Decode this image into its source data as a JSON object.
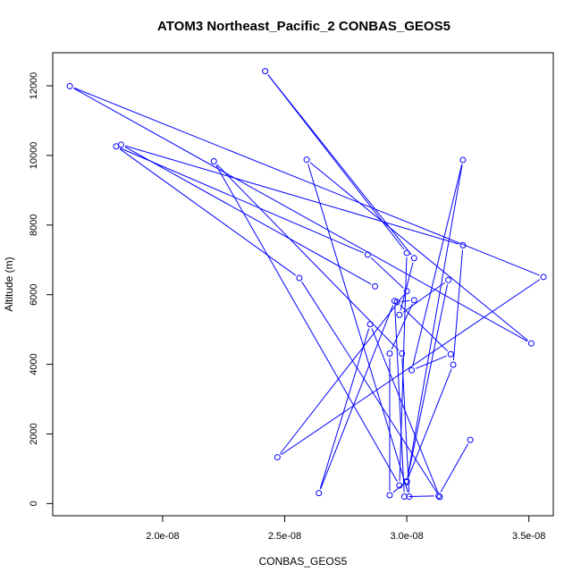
{
  "chart_data": {
    "type": "line",
    "title": "ATOM3 Northeast_Pacific_2 CONBAS_GEOS5",
    "xlabel": "CONBAS_GEOS5",
    "ylabel": "Altitude (m)",
    "xlim": [
      1.55e-08,
      3.6e-08
    ],
    "ylim": [
      -350,
      12950
    ],
    "x_ticks": [
      2e-08,
      2.5e-08,
      3e-08,
      3.5e-08
    ],
    "x_tick_labels": [
      "2.0e-08",
      "2.5e-08",
      "3.0e-08",
      "3.5e-08"
    ],
    "y_ticks": [
      0,
      2000,
      4000,
      6000,
      8000,
      10000,
      12000
    ],
    "y_tick_labels": [
      "0",
      "2000",
      "4000",
      "6000",
      "8000",
      "10000",
      "12000"
    ],
    "grid": false,
    "series": [
      {
        "color": "#0000ff",
        "marker": "open-circle",
        "x": [
          3.26e-08,
          3.13e-08,
          2.99e-08,
          2.95e-08,
          2.64e-08,
          2.85e-08,
          3.135e-08,
          2.56e-08,
          1.81e-08,
          2.84e-08,
          3e-08,
          2.47e-08,
          3.56e-08,
          1.62e-08,
          3.51e-08,
          2.59e-08,
          3.01e-08,
          2.98e-08,
          2.21e-08,
          2.97e-08,
          3e-08,
          2.42e-08,
          3.03e-08,
          2.97e-08,
          3.17e-08,
          3e-08,
          3.23e-08,
          3.02e-08,
          3.18e-08,
          2.96e-08,
          3.03e-08,
          2.93e-08,
          2.93e-08,
          3e-08,
          3.19e-08,
          3.23e-08,
          1.83e-08,
          2.87e-08
        ],
        "y": [
          1830,
          220,
          200,
          5820,
          300,
          5150,
          190,
          6480,
          10260,
          7150,
          6100,
          1330,
          6510,
          11990,
          4600,
          9880,
          200,
          4310,
          9830,
          520,
          7200,
          12420,
          7050,
          5420,
          6420,
          620,
          9870,
          3830,
          4290,
          5790,
          5840,
          4310,
          240,
          640,
          3990,
          7420,
          10310,
          6240
        ]
      }
    ]
  }
}
